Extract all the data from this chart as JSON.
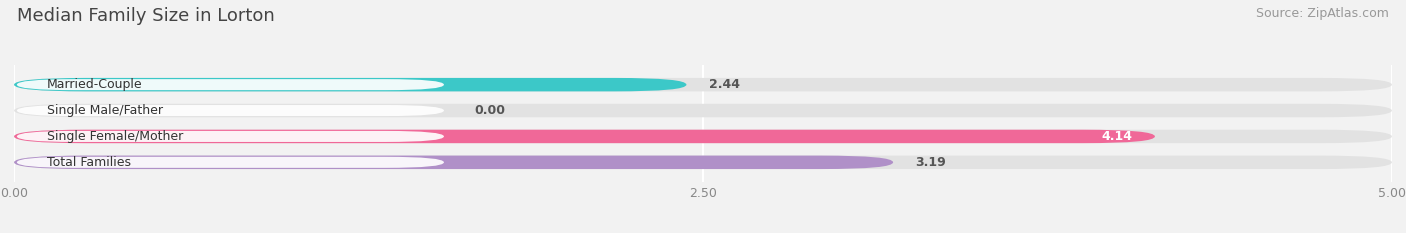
{
  "title": "Median Family Size in Lorton",
  "source": "Source: ZipAtlas.com",
  "categories": [
    "Married-Couple",
    "Single Male/Father",
    "Single Female/Mother",
    "Total Families"
  ],
  "values": [
    2.44,
    0.0,
    4.14,
    3.19
  ],
  "bar_colors": [
    "#3cc8c8",
    "#aab8e0",
    "#f06898",
    "#b090c8"
  ],
  "xlim": [
    0,
    5.0
  ],
  "xtick_labels": [
    "0.00",
    "2.50",
    "5.00"
  ],
  "xtick_values": [
    0.0,
    2.5,
    5.0
  ],
  "background_color": "#f2f2f2",
  "bar_bg_color": "#e2e2e2",
  "label_box_color": "#ffffff",
  "title_fontsize": 13,
  "source_fontsize": 9,
  "label_fontsize": 9,
  "value_fontsize": 9,
  "bar_height": 0.52
}
